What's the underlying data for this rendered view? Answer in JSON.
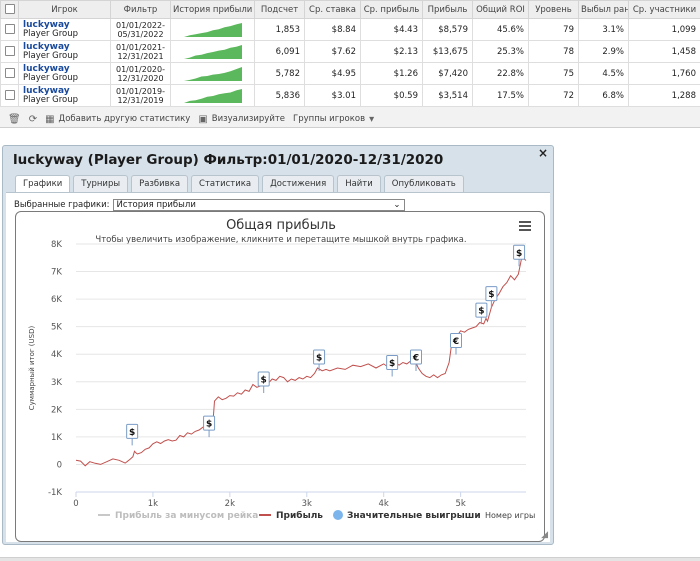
{
  "stats_table": {
    "headers": [
      "Игрок",
      "Фильтр",
      "История прибыли",
      "Подсчет",
      "Ср. ставка",
      "Ср. прибыль",
      "Прибыль",
      "Общий ROI",
      "Уровень",
      "Выбыл ранее",
      "Ср. участники"
    ],
    "rows": [
      {
        "player": "luckyway",
        "group": "Player Group",
        "filter_from": "01/01/2022-",
        "filter_to": "05/31/2022",
        "count": "1,853",
        "avg_stake": "$8.84",
        "avg_profit": "$4.43",
        "profit": "$8,579",
        "roi": "45.6%",
        "level": "79",
        "early_out": "3.1%",
        "avg_entrants": "1,099",
        "spark": [
          0,
          0.12,
          0.2,
          0.28,
          0.35,
          0.48,
          0.55,
          0.7,
          0.78,
          0.9,
          1
        ]
      },
      {
        "player": "luckyway",
        "group": "Player Group",
        "filter_from": "01/01/2021-",
        "filter_to": "12/31/2021",
        "count": "6,091",
        "avg_stake": "$7.62",
        "avg_profit": "$2.13",
        "profit": "$13,675",
        "roi": "25.3%",
        "level": "78",
        "early_out": "2.9%",
        "avg_entrants": "1,458",
        "spark": [
          0,
          0.1,
          0.25,
          0.3,
          0.42,
          0.5,
          0.6,
          0.66,
          0.8,
          0.88,
          1
        ]
      },
      {
        "player": "luckyway",
        "group": "Player Group",
        "filter_from": "01/01/2020-",
        "filter_to": "12/31/2020",
        "count": "5,782",
        "avg_stake": "$4.95",
        "avg_profit": "$1.26",
        "profit": "$7,420",
        "roi": "22.8%",
        "level": "75",
        "early_out": "4.5%",
        "avg_entrants": "1,760",
        "spark": [
          0,
          0.08,
          0.18,
          0.32,
          0.36,
          0.46,
          0.5,
          0.58,
          0.7,
          0.85,
          1
        ]
      },
      {
        "player": "luckyway",
        "group": "Player Group",
        "filter_from": "01/01/2019-",
        "filter_to": "12/31/2019",
        "count": "5,836",
        "avg_stake": "$3.01",
        "avg_profit": "$0.59",
        "profit": "$3,514",
        "roi": "17.5%",
        "level": "72",
        "early_out": "6.8%",
        "avg_entrants": "1,288",
        "spark": [
          0,
          0.15,
          0.2,
          0.3,
          0.45,
          0.5,
          0.62,
          0.7,
          0.75,
          0.9,
          1
        ]
      }
    ]
  },
  "toolbar": {
    "add_stat": "Добавить другую статистику",
    "visualize": "Визуализируйте",
    "player_groups": "Группы игроков"
  },
  "panel": {
    "title": "luckyway (Player Group) Фильтр:01/01/2020-12/31/2020",
    "tabs": [
      "Графики",
      "Турниры",
      "Разбивка",
      "Статистика",
      "Достижения",
      "Найти",
      "Опубликовать"
    ],
    "active_tab": 0,
    "chart_select_label": "Выбранные графики:",
    "chart_select_value": "История прибыли"
  },
  "colors": {
    "profit_line": "#c0504d",
    "rake_line": "#c8c8c8",
    "big_win": "#7cb5ec",
    "spark_fill": "#5cb85c"
  },
  "chart_data": {
    "type": "line",
    "title": "Общая прибыль",
    "subtitle": "Чтобы увеличить изображение, кликните и перетащите мышкой внутрь графика.",
    "xlabel": "Номер игры",
    "ylabel": "Суммарный итог (USD)",
    "xlim": [
      0,
      5850
    ],
    "ylim": [
      -1000,
      8000
    ],
    "x_ticks": [
      0,
      1000,
      2000,
      3000,
      4000,
      5000
    ],
    "x_tick_labels": [
      "0",
      "1k",
      "2k",
      "3k",
      "4k",
      "5k"
    ],
    "y_ticks": [
      -1000,
      0,
      1000,
      2000,
      3000,
      4000,
      5000,
      6000,
      7000,
      8000
    ],
    "y_tick_labels": [
      "-1K",
      "0",
      "1K",
      "2K",
      "3K",
      "4K",
      "5K",
      "6K",
      "7K",
      "8K"
    ],
    "legend": [
      "Прибыль за минусом рейка",
      "Прибыль",
      "Значительные выигрыши"
    ],
    "legend_position": "bottom",
    "series": [
      {
        "name": "Прибыль",
        "points": [
          [
            0,
            150
          ],
          [
            60,
            120
          ],
          [
            120,
            -50
          ],
          [
            180,
            100
          ],
          [
            250,
            40
          ],
          [
            320,
            0
          ],
          [
            400,
            100
          ],
          [
            480,
            200
          ],
          [
            560,
            150
          ],
          [
            640,
            50
          ],
          [
            700,
            180
          ],
          [
            740,
            280
          ],
          [
            760,
            480
          ],
          [
            780,
            420
          ],
          [
            800,
            380
          ],
          [
            850,
            430
          ],
          [
            900,
            550
          ],
          [
            950,
            600
          ],
          [
            1000,
            750
          ],
          [
            1050,
            820
          ],
          [
            1100,
            760
          ],
          [
            1150,
            850
          ],
          [
            1200,
            900
          ],
          [
            1250,
            850
          ],
          [
            1300,
            880
          ],
          [
            1350,
            1050
          ],
          [
            1400,
            1000
          ],
          [
            1450,
            1150
          ],
          [
            1500,
            1100
          ],
          [
            1550,
            1200
          ],
          [
            1600,
            1250
          ],
          [
            1650,
            1350
          ],
          [
            1700,
            1400
          ],
          [
            1750,
            1600
          ],
          [
            1780,
            1500
          ],
          [
            1800,
            2300
          ],
          [
            1850,
            2450
          ],
          [
            1900,
            2350
          ],
          [
            1950,
            2400
          ],
          [
            2000,
            2500
          ],
          [
            2050,
            2480
          ],
          [
            2100,
            2600
          ],
          [
            2150,
            2550
          ],
          [
            2200,
            2700
          ],
          [
            2250,
            2650
          ],
          [
            2300,
            2900
          ],
          [
            2350,
            2800
          ],
          [
            2400,
            2850
          ],
          [
            2450,
            3000
          ],
          [
            2500,
            2950
          ],
          [
            2550,
            3100
          ],
          [
            2600,
            3050
          ],
          [
            2650,
            3200
          ],
          [
            2700,
            3150
          ],
          [
            2750,
            3000
          ],
          [
            2800,
            3100
          ],
          [
            2850,
            3050
          ],
          [
            2900,
            3150
          ],
          [
            2950,
            3100
          ],
          [
            3000,
            3200
          ],
          [
            3050,
            3150
          ],
          [
            3100,
            3300
          ],
          [
            3140,
            3500
          ],
          [
            3200,
            3400
          ],
          [
            3250,
            3450
          ],
          [
            3300,
            3400
          ],
          [
            3400,
            3500
          ],
          [
            3500,
            3450
          ],
          [
            3600,
            3600
          ],
          [
            3700,
            3550
          ],
          [
            3800,
            3650
          ],
          [
            3900,
            3500
          ],
          [
            4000,
            3650
          ],
          [
            4050,
            3550
          ],
          [
            4100,
            3750
          ],
          [
            4150,
            3700
          ],
          [
            4200,
            3600
          ],
          [
            4250,
            3700
          ],
          [
            4300,
            3650
          ],
          [
            4350,
            3750
          ],
          [
            4400,
            3800
          ],
          [
            4450,
            3500
          ],
          [
            4500,
            3300
          ],
          [
            4550,
            3200
          ],
          [
            4600,
            3150
          ],
          [
            4650,
            3250
          ],
          [
            4700,
            3150
          ],
          [
            4750,
            3250
          ],
          [
            4800,
            3300
          ],
          [
            4850,
            3700
          ],
          [
            4900,
            4700
          ],
          [
            4950,
            4650
          ],
          [
            5000,
            4850
          ],
          [
            5050,
            4800
          ],
          [
            5100,
            4900
          ],
          [
            5150,
            4950
          ],
          [
            5200,
            5000
          ],
          [
            5250,
            5150
          ],
          [
            5300,
            5100
          ],
          [
            5330,
            5300
          ],
          [
            5350,
            5200
          ],
          [
            5400,
            5700
          ],
          [
            5450,
            6000
          ],
          [
            5500,
            6200
          ],
          [
            5550,
            6450
          ],
          [
            5600,
            6600
          ],
          [
            5650,
            6850
          ],
          [
            5700,
            6700
          ],
          [
            5750,
            6900
          ],
          [
            5780,
            7300
          ],
          [
            5800,
            7600
          ],
          [
            5830,
            7450
          ],
          [
            5850,
            7400
          ]
        ]
      },
      {
        "name": "Значительные выигрыши",
        "points": [
          [
            730,
            1200
          ],
          [
            1730,
            1500
          ],
          [
            2440,
            3100
          ],
          [
            3160,
            3900
          ],
          [
            4110,
            3700
          ],
          [
            4420,
            3900
          ],
          [
            4940,
            4500
          ],
          [
            5270,
            5600
          ],
          [
            5400,
            6200
          ],
          [
            5760,
            7700
          ]
        ],
        "symbols": [
          "$",
          "$",
          "$",
          "$",
          "$",
          "€",
          "€",
          "$",
          "$",
          "$"
        ]
      }
    ]
  }
}
